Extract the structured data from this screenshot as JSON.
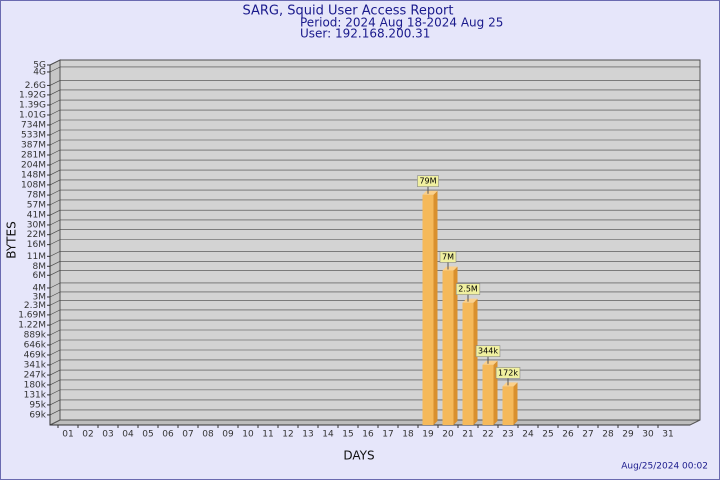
{
  "chart_data": {
    "type": "bar",
    "title": "SARG, Squid User Access Report",
    "subtitle": [
      "Period: 2024 Aug 18-2024 Aug 25",
      "User: 192.168.200.31"
    ],
    "x_label": "DAYS",
    "y_label": "BYTES",
    "footer": "Aug/25/2024 00:02",
    "categories": [
      "01",
      "02",
      "03",
      "04",
      "05",
      "06",
      "07",
      "08",
      "09",
      "10",
      "11",
      "12",
      "13",
      "14",
      "15",
      "16",
      "17",
      "18",
      "19",
      "20",
      "21",
      "22",
      "23",
      "24",
      "25",
      "26",
      "27",
      "28",
      "29",
      "30",
      "31"
    ],
    "values": [
      null,
      null,
      null,
      null,
      null,
      null,
      null,
      null,
      null,
      null,
      null,
      null,
      null,
      null,
      null,
      null,
      null,
      null,
      79000000,
      7000000,
      2500000,
      344000,
      172000,
      null,
      null,
      null,
      null,
      null,
      null,
      null,
      null
    ],
    "value_labels": [
      null,
      null,
      null,
      null,
      null,
      null,
      null,
      null,
      null,
      null,
      null,
      null,
      null,
      null,
      null,
      null,
      null,
      null,
      "79M",
      "7M",
      "2.5M",
      "344k",
      "172k",
      null,
      null,
      null,
      null,
      null,
      null,
      null,
      null
    ],
    "color": "#f5b95a",
    "log": true,
    "grid": true,
    "ylim": [
      50000,
      5000000000
    ],
    "yticks": [
      {
        "value": 69000,
        "label": "69k"
      },
      {
        "value": 95000,
        "label": "95k"
      },
      {
        "value": 131000,
        "label": "131k"
      },
      {
        "value": 180000,
        "label": "180k"
      },
      {
        "value": 247000,
        "label": "247k"
      },
      {
        "value": 341000,
        "label": "341k"
      },
      {
        "value": 469000,
        "label": "469k"
      },
      {
        "value": 646000,
        "label": "646k"
      },
      {
        "value": 889000,
        "label": "889k"
      },
      {
        "value": 1220000,
        "label": "1.22M"
      },
      {
        "value": 1690000,
        "label": "1.69M"
      },
      {
        "value": 2300000,
        "label": "2.3M"
      },
      {
        "value": 3000000,
        "label": "3M"
      },
      {
        "value": 4000000,
        "label": "4M"
      },
      {
        "value": 6000000,
        "label": "6M"
      },
      {
        "value": 8000000,
        "label": "8M"
      },
      {
        "value": 11000000,
        "label": "11M"
      },
      {
        "value": 16000000,
        "label": "16M"
      },
      {
        "value": 22000000,
        "label": "22M"
      },
      {
        "value": 30000000,
        "label": "30M"
      },
      {
        "value": 41000000,
        "label": "41M"
      },
      {
        "value": 57000000,
        "label": "57M"
      },
      {
        "value": 78000000,
        "label": "78M"
      },
      {
        "value": 108000000,
        "label": "108M"
      },
      {
        "value": 148000000,
        "label": "148M"
      },
      {
        "value": 204000000,
        "label": "204M"
      },
      {
        "value": 281000000,
        "label": "281M"
      },
      {
        "value": 387000000,
        "label": "387M"
      },
      {
        "value": 533000000,
        "label": "533M"
      },
      {
        "value": 734000000,
        "label": "734M"
      },
      {
        "value": 1010000000,
        "label": "1.01G"
      },
      {
        "value": 1390000000,
        "label": "1.39G"
      },
      {
        "value": 1920000000,
        "label": "1.92G"
      },
      {
        "value": 2600000000,
        "label": "2.6G"
      },
      {
        "value": 4000000000,
        "label": "4G"
      },
      {
        "value": 5000000000,
        "label": "5G"
      }
    ]
  }
}
